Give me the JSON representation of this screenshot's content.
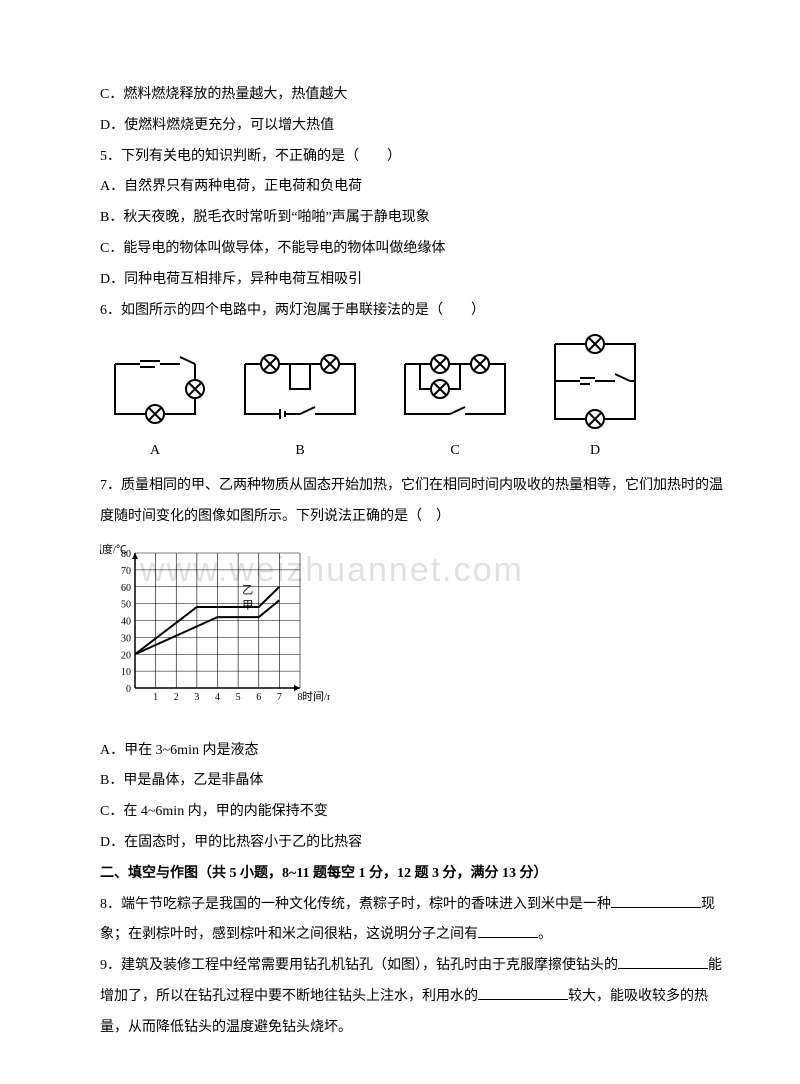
{
  "q4": {
    "optC": "C．燃料燃烧释放的热量越大，热值越大",
    "optD": "D．使燃料燃烧更充分，可以增大热值"
  },
  "q5": {
    "stem": "5．下列有关电的知识判断，不正确的是（　　）",
    "optA": "A．自然界只有两种电荷，正电荷和负电荷",
    "optB": "B．秋天夜晚，脱毛衣时常听到“啪啪”声属于静电现象",
    "optC": "C．能导电的物体叫做导体，不能导电的物体叫做绝缘体",
    "optD": "D．同种电荷互相排斥，异种电荷互相吸引"
  },
  "q6": {
    "stem": "6．如图所示的四个电路中，两灯泡属于串联接法的是（　　）",
    "labels": [
      "A",
      "B",
      "C",
      "D"
    ]
  },
  "q7": {
    "stem": "7．质量相同的甲、乙两种物质从固态开始加热，它们在相同时间内吸收的热量相等，它们加热时的温度随时间变化的图像如图所示。下列说法正确的是（　）",
    "optA": "A．甲在 3~6min 内是液态",
    "optB": "B．甲是晶体，乙是非晶体",
    "optC": "C．在 4~6min 内，甲的内能保持不变",
    "optD": "D．在固态时，甲的比热容小于乙的比热容",
    "chart": {
      "type": "line",
      "x_label": "时间/min",
      "y_label": "温度/℃",
      "xlim": [
        0,
        8
      ],
      "xtick_step": 1,
      "ylim": [
        0,
        80
      ],
      "ytick_step": 10,
      "grid_color": "#000000",
      "bg": "#ffffff",
      "series": [
        {
          "name": "甲",
          "label_pos": [
            5.2,
            47
          ],
          "color": "#000000",
          "points": [
            [
              0,
              20
            ],
            [
              3,
              48
            ],
            [
              6,
              48
            ],
            [
              7,
              60
            ]
          ]
        },
        {
          "name": "乙",
          "label_pos": [
            5.2,
            56
          ],
          "color": "#000000",
          "points": [
            [
              0,
              20
            ],
            [
              4,
              42
            ],
            [
              6,
              42
            ],
            [
              7,
              52
            ]
          ]
        }
      ],
      "watermark": "www.weizhuannet.com"
    }
  },
  "section2": {
    "heading": "二、填空与作图（共 5 小题，8~11 题每空 1 分，12 题 3 分，满分 13 分）"
  },
  "q8": {
    "part1": "8．端午节吃粽子是我国的一种文化传统，煮粽子时，棕叶的香味进入到米中是一种",
    "part2": "现象；在剥棕叶时，感到棕叶和米之间很粘，这说明分子之间有",
    "part3": "。"
  },
  "q9": {
    "part1": "9．建筑及装修工程中经常需要用钻孔机钻孔（如图），钻孔时由于克服摩擦使钻头的",
    "part2": "能增加了，所以在钻孔过程中要不断地往钻头上注水，利用水的",
    "part3": "较大，能吸收较多的热量，从而降低钻头的温度避免钻头烧坏。"
  }
}
